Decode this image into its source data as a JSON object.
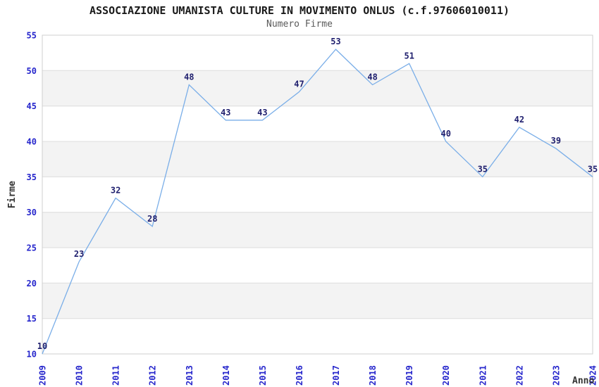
{
  "header": {
    "title": "ASSOCIAZIONE UMANISTA CULTURE IN MOVIMENTO ONLUS (c.f.97606010011)",
    "subtitle": "Numero Firme"
  },
  "chart_data": {
    "type": "line",
    "title": "ASSOCIAZIONE UMANISTA CULTURE IN MOVIMENTO ONLUS (c.f.97606010011)",
    "subtitle": "Numero Firme",
    "categories": [
      "2009",
      "2010",
      "2011",
      "2012",
      "2013",
      "2014",
      "2015",
      "2016",
      "2017",
      "2018",
      "2019",
      "2020",
      "2021",
      "2022",
      "2023",
      "2024"
    ],
    "values": [
      10,
      23,
      32,
      28,
      48,
      43,
      43,
      47,
      53,
      48,
      51,
      40,
      35,
      42,
      39,
      35
    ],
    "xlabel": "Anno",
    "ylabel": "Firme",
    "ylim": [
      10,
      55
    ],
    "ytick_step": 5,
    "yticks": [
      10,
      15,
      20,
      25,
      30,
      35,
      40,
      45,
      50,
      55
    ],
    "grid": "horizontal-lines-with-alternating-bands",
    "legend": "none",
    "point_markers": "none",
    "data_labels_shown": true,
    "colors": {
      "line": "#7aaee8",
      "band": "#f3f3f3",
      "grid_line": "#dcdcdc",
      "frame": "#cfcfcf",
      "tick_label": "#2626cc",
      "data_label": "#1f1f6e",
      "axis_title": "#333333",
      "title": "#1a1a1a",
      "subtitle": "#5a5a5a",
      "background": "#ffffff"
    }
  }
}
